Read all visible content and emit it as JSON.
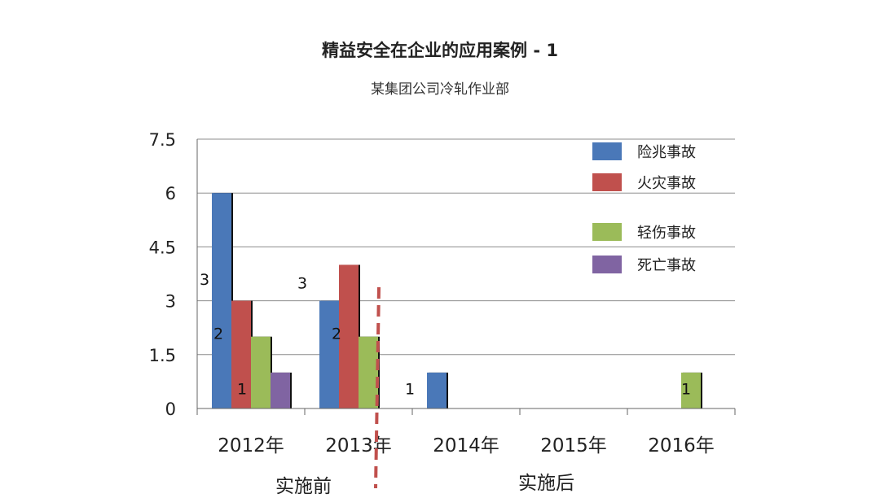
{
  "header": {
    "title": "精益安全在企业的应用案例 - 1",
    "subtitle": "某集团公司冷轧作业部"
  },
  "phases": {
    "before": "实施前",
    "after": "实施后"
  },
  "chart_data": {
    "type": "bar",
    "categories": [
      "2012年",
      "2013年",
      "2014年",
      "2015年",
      "2016年"
    ],
    "series": [
      {
        "name": "险兆事故",
        "color": "#4a78b8",
        "values": [
          6,
          3,
          1,
          0,
          0
        ]
      },
      {
        "name": "火灾事故",
        "color": "#c0504d",
        "values": [
          3,
          4,
          0,
          0,
          0
        ]
      },
      {
        "name": "轻伤事故",
        "color": "#9bbb59",
        "values": [
          2,
          2,
          0,
          0,
          1
        ]
      },
      {
        "name": "死亡事故",
        "color": "#8064a2",
        "values": [
          1,
          0,
          0,
          0,
          0
        ]
      }
    ],
    "yticks": [
      "0",
      "1.5",
      "3",
      "4.5",
      "6",
      "7.5"
    ],
    "ylim": [
      0,
      7.5
    ],
    "grid": true,
    "legend_position": "top-right",
    "annotations": [
      {
        "text": "3",
        "category": 0,
        "y": 3.6
      },
      {
        "text": "2",
        "category": 0,
        "y": 2.1
      },
      {
        "text": "1",
        "category": 0,
        "y": 0.55
      },
      {
        "text": "3",
        "category": 1,
        "y": 3.5
      },
      {
        "text": "2",
        "category": 1,
        "y": 2.1
      },
      {
        "text": "1",
        "category": 2,
        "y": 0.55
      },
      {
        "text": "1",
        "category": 4,
        "y": 0.55
      }
    ],
    "divider": {
      "between": [
        1,
        2
      ],
      "color": "#c0504d"
    }
  }
}
